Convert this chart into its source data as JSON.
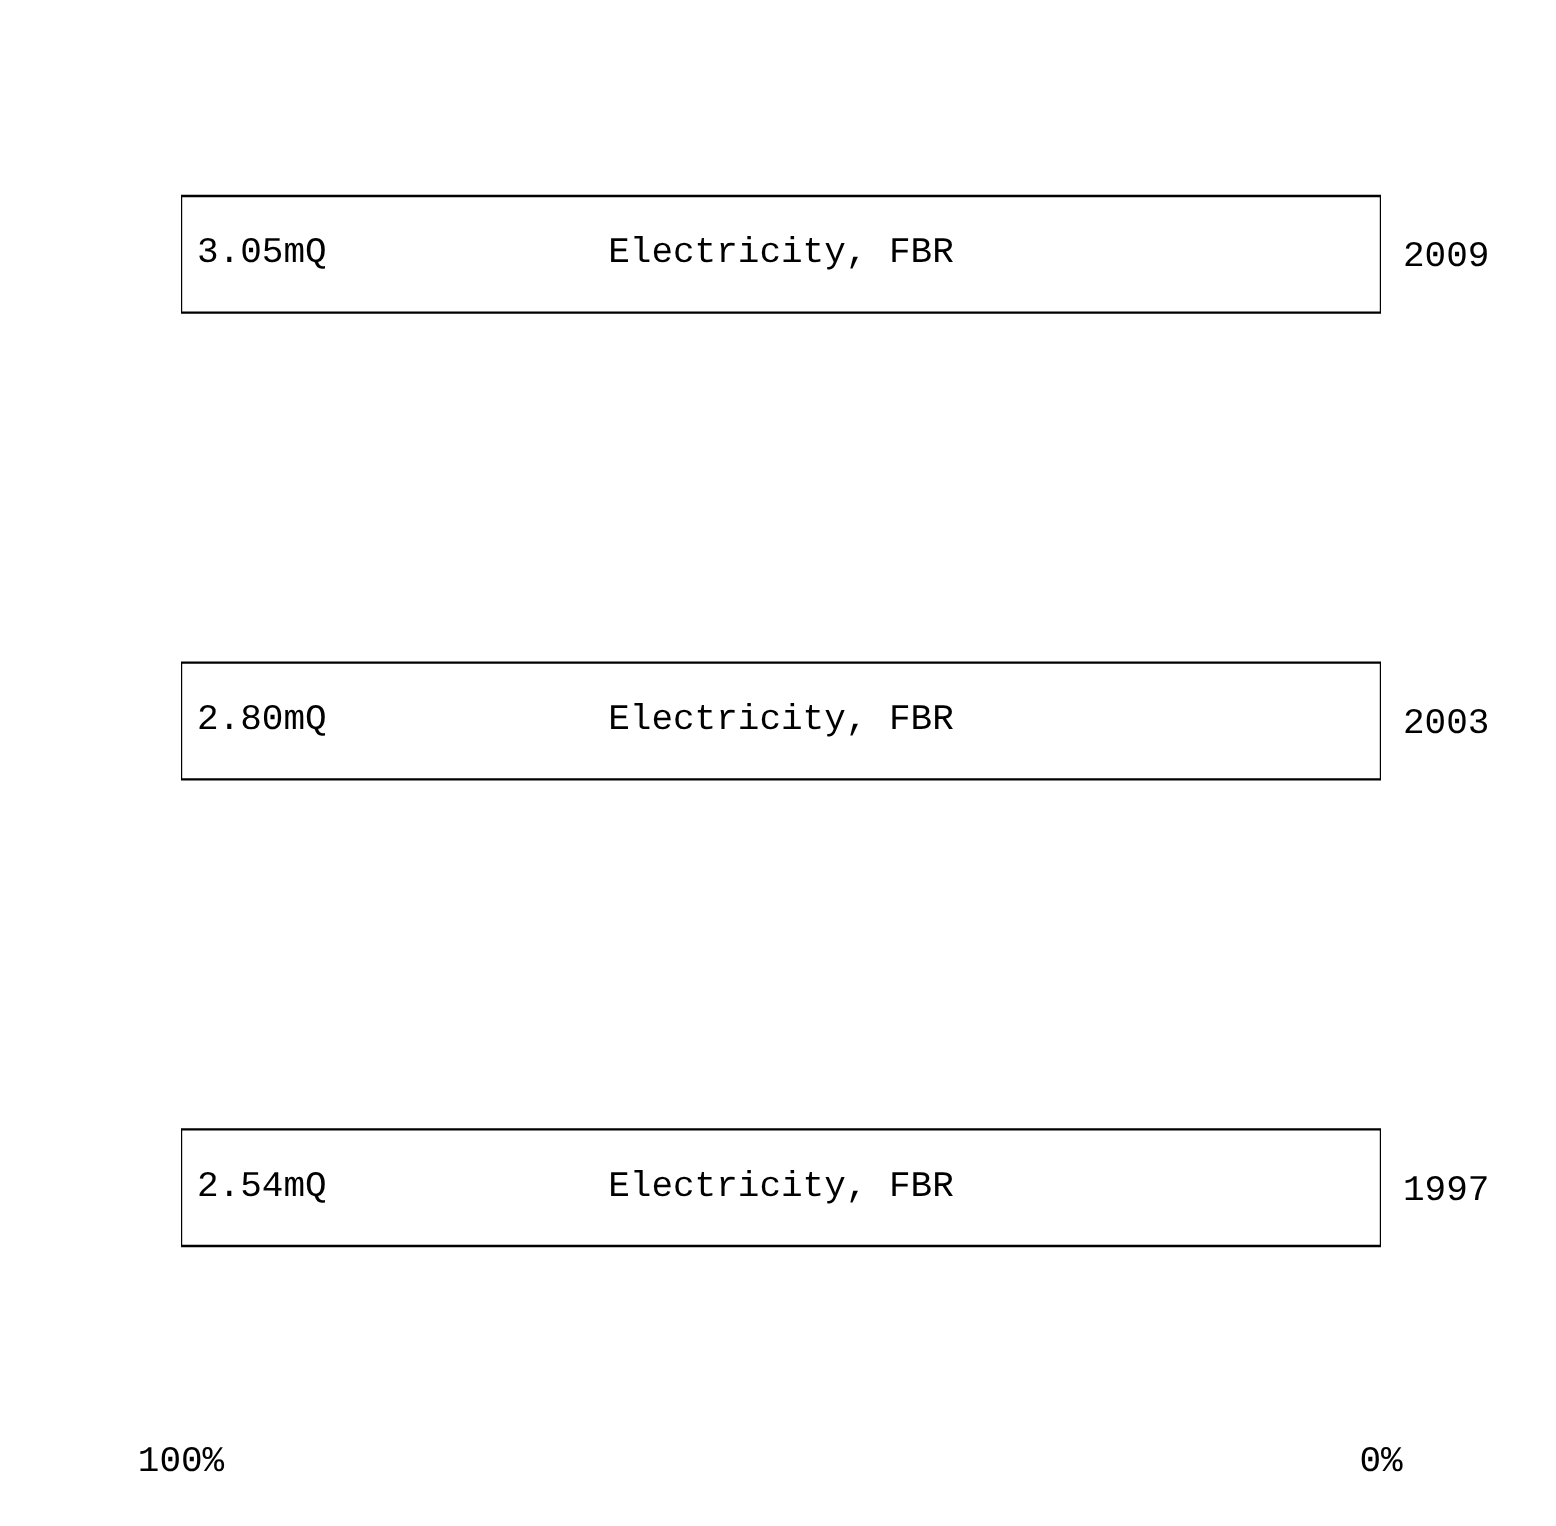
{
  "chart_data": {
    "type": "bar",
    "orientation": "horizontal",
    "categories": [
      "2009",
      "2003",
      "1997"
    ],
    "series": [
      {
        "name": "Electricity, FBR",
        "color": "#ffffff",
        "values": [
          100,
          100,
          100
        ]
      }
    ],
    "annotations": [
      "3.05mQ",
      "2.80mQ",
      "2.54mQ"
    ],
    "xlim": [
      100,
      0
    ],
    "xticks": [
      {
        "value": 100,
        "label": "100%"
      },
      {
        "value": 0,
        "label": "0%"
      }
    ]
  }
}
